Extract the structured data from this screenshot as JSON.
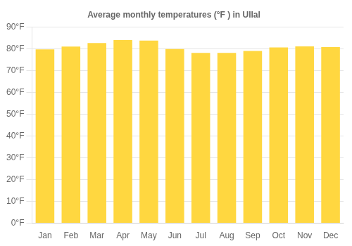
{
  "chart_data": {
    "type": "bar",
    "title": "Average monthly temperatures (°F ) in Ullal",
    "categories": [
      "Jan",
      "Feb",
      "Mar",
      "Apr",
      "May",
      "Jun",
      "Jul",
      "Aug",
      "Sep",
      "Oct",
      "Nov",
      "Dec"
    ],
    "values": [
      79.7,
      81.0,
      82.6,
      84.0,
      83.8,
      79.9,
      78.1,
      78.1,
      79.0,
      80.6,
      81.1,
      80.8
    ],
    "color": "#FFD740",
    "ylim": [
      0,
      90
    ],
    "yticks": [
      {
        "value": 0,
        "label": "0°F"
      },
      {
        "value": 10,
        "label": "10°F"
      },
      {
        "value": 20,
        "label": "20°F"
      },
      {
        "value": 30,
        "label": "30°F"
      },
      {
        "value": 40,
        "label": "40°F"
      },
      {
        "value": 50,
        "label": "50°F"
      },
      {
        "value": 60,
        "label": "60°F"
      },
      {
        "value": 70,
        "label": "70°F"
      },
      {
        "value": 80,
        "label": "80°F"
      },
      {
        "value": 90,
        "label": "90°F"
      }
    ],
    "grid": true
  }
}
